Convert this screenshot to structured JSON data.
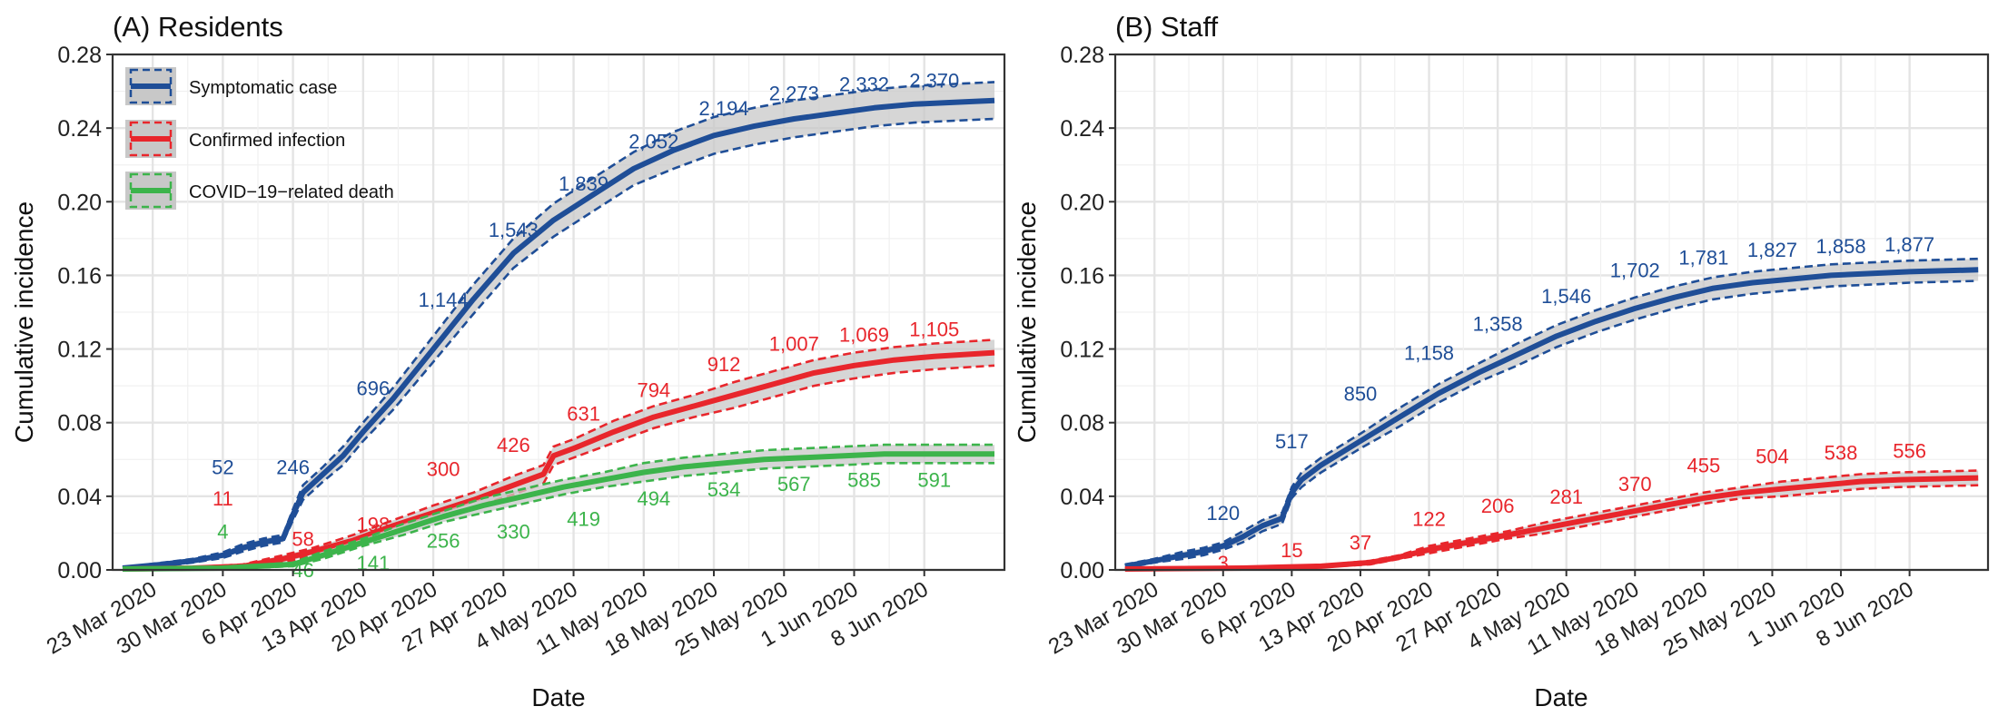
{
  "colors": {
    "blue": "#1f4e97",
    "red": "#e8262c",
    "green": "#3cb44b",
    "band": "#c8c8c8",
    "grid": "#ebebeb"
  },
  "legend": {
    "items": [
      {
        "label": "Symptomatic case",
        "color": "#1f4e97"
      },
      {
        "label": "Confirmed infection",
        "color": "#e8262c"
      },
      {
        "label": "COVID−19−related death",
        "color": "#3cb44b"
      }
    ]
  },
  "chart_data": [
    {
      "type": "line",
      "title": "(A) Residents",
      "xlabel": "Date",
      "ylabel": "Cumulative incidence",
      "ylim": [
        0,
        0.28
      ],
      "yticks": [
        "0.00",
        "0.04",
        "0.08",
        "0.12",
        "0.16",
        "0.20",
        "0.24",
        "0.28"
      ],
      "xlim": [
        "2020-03-19",
        "2020-06-16"
      ],
      "xticks": [
        "23 Mar 2020",
        "30 Mar 2020",
        "6 Apr 2020",
        "13 Apr 2020",
        "20 Apr 2020",
        "27 Apr 2020",
        "4 May 2020",
        "11 May 2020",
        "18 May 2020",
        "25 May 2020",
        "1 Jun 2020",
        "8 Jun 2020"
      ],
      "grid": true,
      "legend_position": "top-left",
      "series": [
        {
          "name": "Symptomatic case",
          "color": "#1f4e97",
          "x": [
            "2020-03-20",
            "2020-03-24",
            "2020-03-27",
            "2020-03-30",
            "2020-04-01",
            "2020-04-03",
            "2020-04-05",
            "2020-04-06",
            "2020-04-07",
            "2020-04-09",
            "2020-04-11",
            "2020-04-13",
            "2020-04-16",
            "2020-04-20",
            "2020-04-24",
            "2020-04-28",
            "2020-05-02",
            "2020-05-06",
            "2020-05-10",
            "2020-05-14",
            "2020-05-18",
            "2020-05-22",
            "2020-05-26",
            "2020-05-30",
            "2020-06-03",
            "2020-06-07",
            "2020-06-11",
            "2020-06-15"
          ],
          "y": [
            0.001,
            0.003,
            0.005,
            0.008,
            0.012,
            0.015,
            0.017,
            0.03,
            0.042,
            0.052,
            0.062,
            0.075,
            0.093,
            0.12,
            0.147,
            0.172,
            0.19,
            0.204,
            0.218,
            0.228,
            0.236,
            0.241,
            0.245,
            0.248,
            0.251,
            0.253,
            0.254,
            0.255
          ],
          "ci_half_width": [
            0.0003,
            0.001,
            0.001,
            0.0015,
            0.002,
            0.002,
            0.002,
            0.003,
            0.004,
            0.004,
            0.005,
            0.005,
            0.006,
            0.007,
            0.008,
            0.008,
            0.009,
            0.009,
            0.009,
            0.01,
            0.01,
            0.01,
            0.01,
            0.01,
            0.01,
            0.01,
            0.01,
            0.01
          ],
          "labels": [
            {
              "x": "2020-03-30",
              "y": 0.052,
              "text": "52"
            },
            {
              "x": "2020-04-06",
              "y": 0.052,
              "text": "246"
            },
            {
              "x": "2020-04-14",
              "y": 0.095,
              "text": "696"
            },
            {
              "x": "2020-04-21",
              "y": 0.143,
              "text": "1,144"
            },
            {
              "x": "2020-04-28",
              "y": 0.181,
              "text": "1,543"
            },
            {
              "x": "2020-05-05",
              "y": 0.206,
              "text": "1,839"
            },
            {
              "x": "2020-05-12",
              "y": 0.229,
              "text": "2,052"
            },
            {
              "x": "2020-05-19",
              "y": 0.247,
              "text": "2,194"
            },
            {
              "x": "2020-05-26",
              "y": 0.255,
              "text": "2,273"
            },
            {
              "x": "2020-06-02",
              "y": 0.26,
              "text": "2,332"
            },
            {
              "x": "2020-06-09",
              "y": 0.262,
              "text": "2,370"
            }
          ]
        },
        {
          "name": "Confirmed infection",
          "color": "#e8262c",
          "x": [
            "2020-03-20",
            "2020-03-27",
            "2020-04-01",
            "2020-04-05",
            "2020-04-08",
            "2020-04-12",
            "2020-04-16",
            "2020-04-20",
            "2020-04-24",
            "2020-04-28",
            "2020-05-01",
            "2020-05-02",
            "2020-05-04",
            "2020-05-08",
            "2020-05-12",
            "2020-05-16",
            "2020-05-20",
            "2020-05-24",
            "2020-05-28",
            "2020-06-01",
            "2020-06-05",
            "2020-06-09",
            "2020-06-15"
          ],
          "y": [
            0.0005,
            0.001,
            0.002,
            0.006,
            0.01,
            0.016,
            0.024,
            0.031,
            0.038,
            0.046,
            0.052,
            0.062,
            0.066,
            0.075,
            0.083,
            0.089,
            0.095,
            0.101,
            0.107,
            0.111,
            0.114,
            0.116,
            0.118
          ],
          "ci_half_width": [
            0.0002,
            0.0005,
            0.001,
            0.002,
            0.002,
            0.003,
            0.003,
            0.004,
            0.004,
            0.005,
            0.005,
            0.005,
            0.005,
            0.006,
            0.006,
            0.006,
            0.007,
            0.007,
            0.007,
            0.007,
            0.007,
            0.007,
            0.007
          ],
          "labels": [
            {
              "x": "2020-03-30",
              "y": 0.035,
              "text": "11"
            },
            {
              "x": "2020-04-07",
              "y": 0.013,
              "text": "58"
            },
            {
              "x": "2020-04-14",
              "y": 0.021,
              "text": "198"
            },
            {
              "x": "2020-04-21",
              "y": 0.051,
              "text": "300"
            },
            {
              "x": "2020-04-28",
              "y": 0.064,
              "text": "426"
            },
            {
              "x": "2020-05-05",
              "y": 0.081,
              "text": "631"
            },
            {
              "x": "2020-05-12",
              "y": 0.094,
              "text": "794"
            },
            {
              "x": "2020-05-19",
              "y": 0.108,
              "text": "912"
            },
            {
              "x": "2020-05-26",
              "y": 0.119,
              "text": "1,007"
            },
            {
              "x": "2020-06-02",
              "y": 0.124,
              "text": "1,069"
            },
            {
              "x": "2020-06-09",
              "y": 0.127,
              "text": "1,105"
            }
          ]
        },
        {
          "name": "COVID−19−related death",
          "color": "#3cb44b",
          "x": [
            "2020-03-20",
            "2020-03-30",
            "2020-04-06",
            "2020-04-09",
            "2020-04-13",
            "2020-04-17",
            "2020-04-21",
            "2020-04-25",
            "2020-04-29",
            "2020-05-03",
            "2020-05-07",
            "2020-05-11",
            "2020-05-15",
            "2020-05-19",
            "2020-05-23",
            "2020-05-27",
            "2020-05-31",
            "2020-06-04",
            "2020-06-08",
            "2020-06-15"
          ],
          "y": [
            0.0005,
            0.001,
            0.003,
            0.008,
            0.015,
            0.022,
            0.029,
            0.035,
            0.04,
            0.045,
            0.049,
            0.053,
            0.056,
            0.058,
            0.06,
            0.061,
            0.062,
            0.063,
            0.063,
            0.063
          ],
          "ci_half_width": [
            0.0002,
            0.0005,
            0.001,
            0.002,
            0.002,
            0.003,
            0.003,
            0.004,
            0.004,
            0.004,
            0.004,
            0.005,
            0.005,
            0.005,
            0.005,
            0.005,
            0.005,
            0.005,
            0.005,
            0.005
          ],
          "labels": [
            {
              "x": "2020-03-30",
              "y": 0.017,
              "text": "4"
            },
            {
              "x": "2020-04-07",
              "y": -0.004,
              "text": "46"
            },
            {
              "x": "2020-04-14",
              "y": 0.0,
              "text": "141"
            },
            {
              "x": "2020-04-21",
              "y": 0.012,
              "text": "256"
            },
            {
              "x": "2020-04-28",
              "y": 0.017,
              "text": "330"
            },
            {
              "x": "2020-05-05",
              "y": 0.024,
              "text": "419"
            },
            {
              "x": "2020-05-12",
              "y": 0.035,
              "text": "494"
            },
            {
              "x": "2020-05-19",
              "y": 0.04,
              "text": "534"
            },
            {
              "x": "2020-05-26",
              "y": 0.043,
              "text": "567"
            },
            {
              "x": "2020-06-02",
              "y": 0.045,
              "text": "585"
            },
            {
              "x": "2020-06-09",
              "y": 0.045,
              "text": "591"
            }
          ]
        }
      ]
    },
    {
      "type": "line",
      "title": "(B) Staff",
      "xlabel": "Date",
      "ylabel": "Cumulative incidence",
      "ylim": [
        0,
        0.28
      ],
      "yticks": [
        "0.00",
        "0.04",
        "0.08",
        "0.12",
        "0.16",
        "0.20",
        "0.24",
        "0.28"
      ],
      "xlim": [
        "2020-03-19",
        "2020-06-16"
      ],
      "xticks": [
        "23 Mar 2020",
        "30 Mar 2020",
        "6 Apr 2020",
        "13 Apr 2020",
        "20 Apr 2020",
        "27 Apr 2020",
        "4 May 2020",
        "11 May 2020",
        "18 May 2020",
        "25 May 2020",
        "1 Jun 2020",
        "8 Jun 2020"
      ],
      "grid": true,
      "series": [
        {
          "name": "Symptomatic case",
          "color": "#1f4e97",
          "x": [
            "2020-03-20",
            "2020-03-23",
            "2020-03-26",
            "2020-03-28",
            "2020-03-30",
            "2020-04-01",
            "2020-04-03",
            "2020-04-05",
            "2020-04-06",
            "2020-04-07",
            "2020-04-09",
            "2020-04-13",
            "2020-04-17",
            "2020-04-21",
            "2020-04-25",
            "2020-04-29",
            "2020-05-03",
            "2020-05-07",
            "2020-05-11",
            "2020-05-15",
            "2020-05-19",
            "2020-05-23",
            "2020-05-27",
            "2020-05-31",
            "2020-06-04",
            "2020-06-08",
            "2020-06-15"
          ],
          "y": [
            0.002,
            0.005,
            0.008,
            0.01,
            0.013,
            0.018,
            0.024,
            0.028,
            0.042,
            0.049,
            0.057,
            0.07,
            0.083,
            0.096,
            0.107,
            0.117,
            0.127,
            0.135,
            0.142,
            0.148,
            0.153,
            0.156,
            0.158,
            0.16,
            0.161,
            0.162,
            0.163
          ],
          "ci_half_width": [
            0.001,
            0.001,
            0.002,
            0.002,
            0.002,
            0.003,
            0.003,
            0.003,
            0.003,
            0.004,
            0.004,
            0.004,
            0.005,
            0.005,
            0.005,
            0.006,
            0.006,
            0.006,
            0.006,
            0.006,
            0.006,
            0.006,
            0.006,
            0.006,
            0.006,
            0.006,
            0.006
          ],
          "labels": [
            {
              "x": "2020-03-30",
              "y": 0.027,
              "text": "120"
            },
            {
              "x": "2020-04-06",
              "y": 0.066,
              "text": "517"
            },
            {
              "x": "2020-04-13",
              "y": 0.092,
              "text": "850"
            },
            {
              "x": "2020-04-20",
              "y": 0.114,
              "text": "1,158"
            },
            {
              "x": "2020-04-27",
              "y": 0.13,
              "text": "1,358"
            },
            {
              "x": "2020-05-04",
              "y": 0.145,
              "text": "1,546"
            },
            {
              "x": "2020-05-11",
              "y": 0.159,
              "text": "1,702"
            },
            {
              "x": "2020-05-18",
              "y": 0.166,
              "text": "1,781"
            },
            {
              "x": "2020-05-25",
              "y": 0.17,
              "text": "1,827"
            },
            {
              "x": "2020-06-01",
              "y": 0.172,
              "text": "1,858"
            },
            {
              "x": "2020-06-08",
              "y": 0.173,
              "text": "1,877"
            }
          ]
        },
        {
          "name": "Confirmed infection",
          "color": "#e8262c",
          "x": [
            "2020-03-20",
            "2020-04-01",
            "2020-04-09",
            "2020-04-14",
            "2020-04-17",
            "2020-04-20",
            "2020-04-24",
            "2020-04-28",
            "2020-05-02",
            "2020-05-06",
            "2020-05-10",
            "2020-05-14",
            "2020-05-18",
            "2020-05-22",
            "2020-05-26",
            "2020-05-30",
            "2020-06-03",
            "2020-06-07",
            "2020-06-15"
          ],
          "y": [
            0.0005,
            0.001,
            0.002,
            0.004,
            0.007,
            0.011,
            0.015,
            0.019,
            0.023,
            0.027,
            0.031,
            0.035,
            0.039,
            0.042,
            0.044,
            0.046,
            0.048,
            0.049,
            0.05
          ],
          "ci_half_width": [
            0.0002,
            0.0003,
            0.0005,
            0.001,
            0.001,
            0.002,
            0.002,
            0.002,
            0.003,
            0.003,
            0.003,
            0.003,
            0.003,
            0.003,
            0.004,
            0.004,
            0.004,
            0.004,
            0.004
          ],
          "labels": [
            {
              "x": "2020-03-30",
              "y": 0.0,
              "text": "3"
            },
            {
              "x": "2020-04-06",
              "y": 0.007,
              "text": "15"
            },
            {
              "x": "2020-04-13",
              "y": 0.011,
              "text": "37"
            },
            {
              "x": "2020-04-20",
              "y": 0.024,
              "text": "122"
            },
            {
              "x": "2020-04-27",
              "y": 0.031,
              "text": "206"
            },
            {
              "x": "2020-05-04",
              "y": 0.036,
              "text": "281"
            },
            {
              "x": "2020-05-11",
              "y": 0.043,
              "text": "370"
            },
            {
              "x": "2020-05-18",
              "y": 0.053,
              "text": "455"
            },
            {
              "x": "2020-05-25",
              "y": 0.058,
              "text": "504"
            },
            {
              "x": "2020-06-01",
              "y": 0.06,
              "text": "538"
            },
            {
              "x": "2020-06-08",
              "y": 0.061,
              "text": "556"
            }
          ]
        }
      ]
    }
  ]
}
